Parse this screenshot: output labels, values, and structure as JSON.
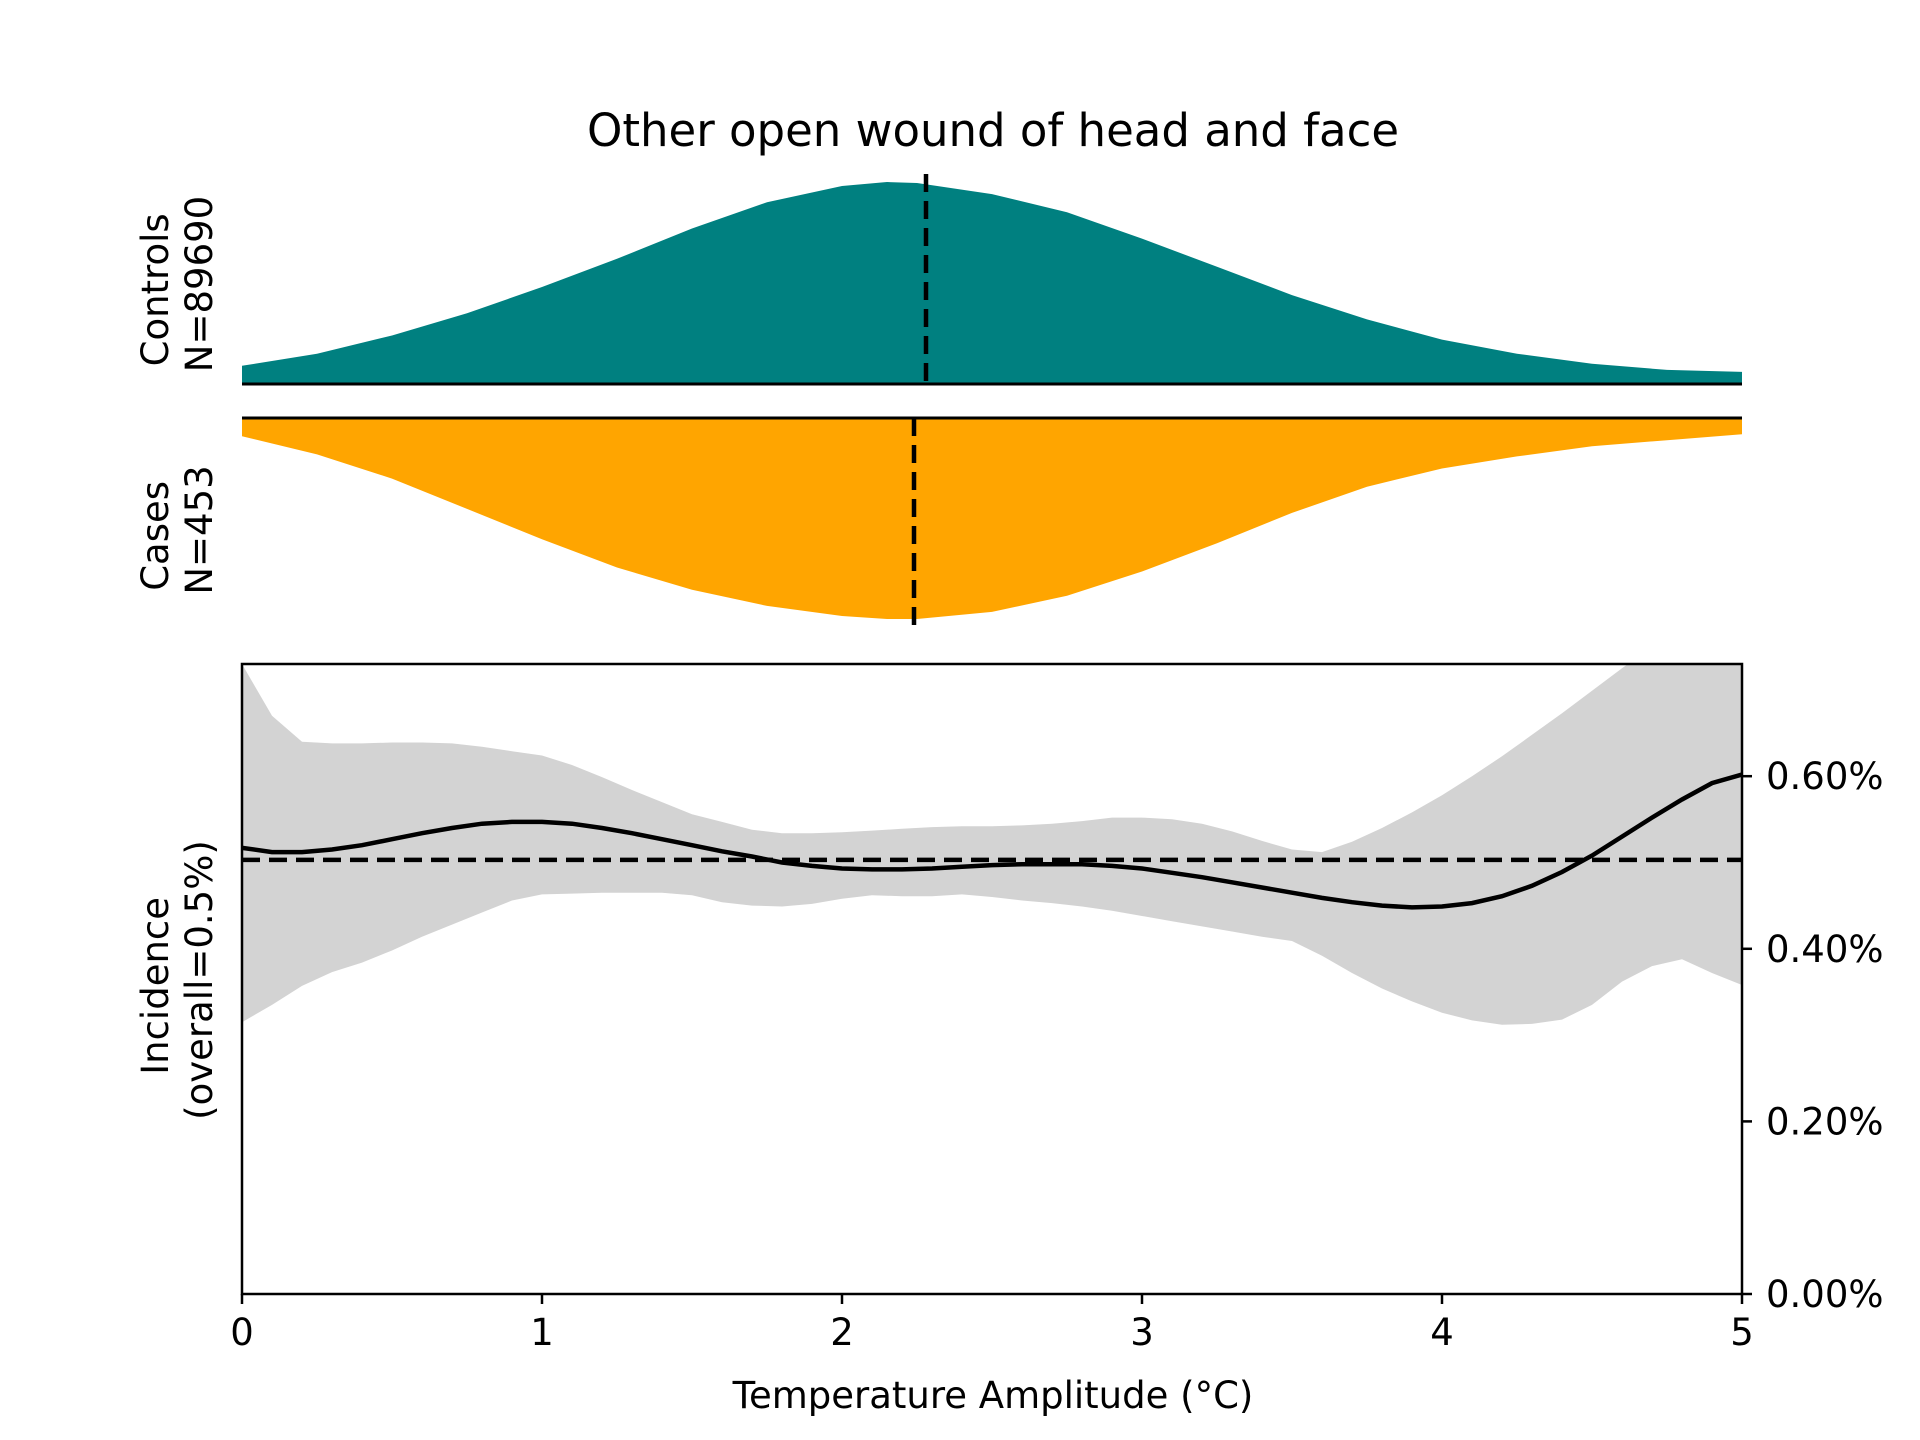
{
  "chart_data": {
    "type": "area",
    "title": "Other open wound of head and face",
    "xlabel": "Temperature Amplitude (°C)",
    "xlim": [
      0,
      5
    ],
    "x_ticks": [
      0,
      1,
      2,
      3,
      4,
      5
    ],
    "x_tick_labels": [
      "0",
      "1",
      "2",
      "3",
      "4",
      "5"
    ],
    "colors": {
      "controls": "#008080",
      "cases": "#FFA500",
      "ci_band": "#D3D3D3",
      "line": "#000000"
    },
    "controls": {
      "label_line1": "Controls",
      "label_line2": "N=89690",
      "median": 2.28,
      "density": {
        "x": [
          0,
          0.25,
          0.5,
          0.75,
          1.0,
          1.25,
          1.5,
          1.75,
          2.0,
          2.15,
          2.25,
          2.5,
          2.75,
          3.0,
          3.25,
          3.5,
          3.75,
          4.0,
          4.25,
          4.5,
          4.75,
          5.0
        ],
        "y": [
          0.09,
          0.15,
          0.24,
          0.35,
          0.48,
          0.62,
          0.77,
          0.9,
          0.98,
          1.0,
          0.995,
          0.94,
          0.85,
          0.72,
          0.58,
          0.44,
          0.32,
          0.22,
          0.15,
          0.1,
          0.07,
          0.06
        ]
      }
    },
    "cases": {
      "label_line1": "Cases",
      "label_line2": "N=453",
      "median": 2.24,
      "density": {
        "x": [
          0,
          0.25,
          0.5,
          0.75,
          1.0,
          1.25,
          1.5,
          1.75,
          2.0,
          2.15,
          2.25,
          2.5,
          2.75,
          3.0,
          3.25,
          3.5,
          3.75,
          4.0,
          4.25,
          4.5,
          4.75,
          5.0
        ],
        "y": [
          0.09,
          0.18,
          0.3,
          0.45,
          0.6,
          0.74,
          0.85,
          0.93,
          0.98,
          0.995,
          0.995,
          0.96,
          0.88,
          0.76,
          0.62,
          0.47,
          0.34,
          0.25,
          0.19,
          0.14,
          0.11,
          0.08
        ]
      }
    },
    "incidence": {
      "ylabel_line1": "Incidence",
      "ylabel_line2": "(overall=0.5%)",
      "ylim": [
        0,
        0.73
      ],
      "y_ticks": [
        0,
        0.2,
        0.4,
        0.6
      ],
      "y_tick_labels": [
        "0.00%",
        "0.20%",
        "0.40%",
        "0.60%"
      ],
      "overall": 0.503,
      "x": [
        0,
        0.1,
        0.2,
        0.3,
        0.4,
        0.5,
        0.6,
        0.7,
        0.8,
        0.9,
        1.0,
        1.1,
        1.2,
        1.3,
        1.4,
        1.5,
        1.6,
        1.7,
        1.8,
        1.9,
        2.0,
        2.1,
        2.2,
        2.3,
        2.4,
        2.5,
        2.6,
        2.7,
        2.8,
        2.9,
        3.0,
        3.1,
        3.2,
        3.3,
        3.4,
        3.5,
        3.6,
        3.7,
        3.8,
        3.9,
        4.0,
        4.1,
        4.2,
        4.3,
        4.4,
        4.5,
        4.6,
        4.7,
        4.8,
        4.9,
        5.0
      ],
      "y": [
        0.517,
        0.512,
        0.512,
        0.515,
        0.52,
        0.527,
        0.534,
        0.54,
        0.545,
        0.547,
        0.547,
        0.545,
        0.54,
        0.534,
        0.527,
        0.52,
        0.513,
        0.507,
        0.5,
        0.496,
        0.493,
        0.492,
        0.492,
        0.493,
        0.495,
        0.497,
        0.498,
        0.498,
        0.498,
        0.496,
        0.493,
        0.488,
        0.483,
        0.477,
        0.471,
        0.465,
        0.459,
        0.454,
        0.45,
        0.448,
        0.449,
        0.453,
        0.461,
        0.473,
        0.489,
        0.508,
        0.53,
        0.552,
        0.573,
        0.592,
        0.602
      ],
      "ci_upper": [
        0.73,
        0.67,
        0.64,
        0.638,
        0.638,
        0.639,
        0.639,
        0.638,
        0.634,
        0.629,
        0.624,
        0.613,
        0.599,
        0.584,
        0.57,
        0.556,
        0.547,
        0.538,
        0.534,
        0.534,
        0.535,
        0.537,
        0.539,
        0.541,
        0.542,
        0.542,
        0.543,
        0.545,
        0.548,
        0.552,
        0.552,
        0.55,
        0.545,
        0.536,
        0.525,
        0.515,
        0.512,
        0.524,
        0.54,
        0.558,
        0.578,
        0.6,
        0.623,
        0.648,
        0.673,
        0.699,
        0.725,
        0.75,
        0.77,
        0.78,
        0.79
      ],
      "ci_lower": [
        0.315,
        0.335,
        0.357,
        0.373,
        0.384,
        0.398,
        0.414,
        0.428,
        0.442,
        0.456,
        0.463,
        0.464,
        0.465,
        0.465,
        0.465,
        0.462,
        0.454,
        0.45,
        0.449,
        0.452,
        0.458,
        0.462,
        0.461,
        0.461,
        0.463,
        0.46,
        0.456,
        0.453,
        0.449,
        0.444,
        0.438,
        0.432,
        0.426,
        0.42,
        0.414,
        0.409,
        0.392,
        0.372,
        0.354,
        0.339,
        0.326,
        0.317,
        0.312,
        0.313,
        0.318,
        0.335,
        0.362,
        0.38,
        0.388,
        0.372,
        0.358
      ]
    }
  }
}
